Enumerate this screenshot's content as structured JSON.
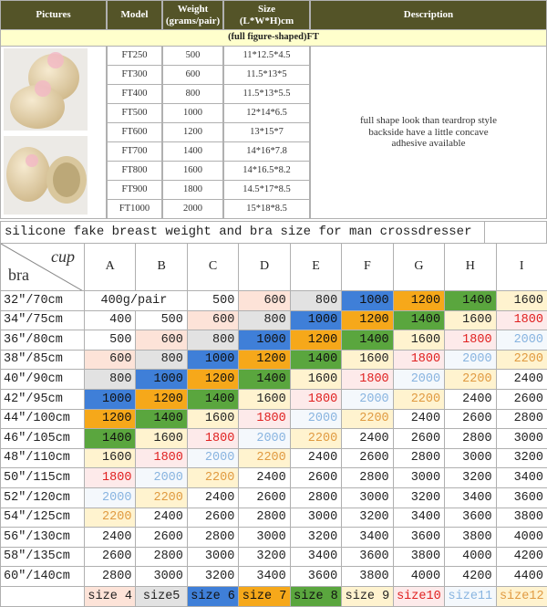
{
  "top": {
    "headers": [
      [
        "Pictures"
      ],
      [
        "Model"
      ],
      [
        "Weight",
        "(grams/pair)"
      ],
      [
        "Size",
        "(L*W*H)cm"
      ],
      [
        "Description"
      ]
    ],
    "subheader": "(full figure-shaped)FT",
    "rows": [
      [
        "FT250",
        "500",
        "11*12.5*4.5"
      ],
      [
        "FT300",
        "600",
        "11.5*13*5"
      ],
      [
        "FT400",
        "800",
        "11.5*13*5.5"
      ],
      [
        "FT500",
        "1000",
        "12*14*6.5"
      ],
      [
        "FT600",
        "1200",
        "13*15*7"
      ],
      [
        "FT700",
        "1400",
        "14*16*7.8"
      ],
      [
        "FT800",
        "1600",
        "14*16.5*8.2"
      ],
      [
        "FT900",
        "1800",
        "14.5*17*8.5"
      ],
      [
        "FT1000",
        "2000",
        "15*18*8.5"
      ]
    ],
    "description": [
      "full shape look than teardrop style",
      "backside have a little concave",
      "adhesive available"
    ]
  },
  "size_table": {
    "title": "silicone fake breast weight and bra size for man crossdresser",
    "cup_label": "cup",
    "bra_label": "bra",
    "cups": [
      "A",
      "B",
      "C",
      "D",
      "E",
      "F",
      "G",
      "H",
      "I"
    ],
    "rows": [
      {
        "bra": "32″/70cm",
        "cells": [
          "400g/pair",
          500,
          600,
          800,
          1000,
          1200,
          1400,
          1600
        ]
      },
      {
        "bra": "34″/75cm",
        "cells": [
          400,
          500,
          600,
          800,
          1000,
          1200,
          1400,
          1600,
          1800
        ]
      },
      {
        "bra": "36″/80cm",
        "cells": [
          500,
          600,
          800,
          1000,
          1200,
          1400,
          1600,
          1800,
          2000
        ]
      },
      {
        "bra": "38″/85cm",
        "cells": [
          600,
          800,
          1000,
          1200,
          1400,
          1600,
          1800,
          2000,
          2200
        ]
      },
      {
        "bra": "40″/90cm",
        "cells": [
          800,
          1000,
          1200,
          1400,
          1600,
          1800,
          2000,
          2200,
          2400
        ]
      },
      {
        "bra": "42″/95cm",
        "cells": [
          1000,
          1200,
          1400,
          1600,
          1800,
          2000,
          2200,
          2400,
          2600
        ]
      },
      {
        "bra": "44″/100cm",
        "cells": [
          1200,
          1400,
          1600,
          1800,
          2000,
          2200,
          2400,
          2600,
          2800
        ]
      },
      {
        "bra": "46″/105cm",
        "cells": [
          1400,
          1600,
          1800,
          2000,
          2200,
          2400,
          2600,
          2800,
          3000
        ]
      },
      {
        "bra": "48″/110cm",
        "cells": [
          1600,
          1800,
          2000,
          2200,
          2400,
          2600,
          2800,
          3000,
          3200
        ]
      },
      {
        "bra": "50″/115cm",
        "cells": [
          1800,
          2000,
          2200,
          2400,
          2600,
          2800,
          3000,
          3200,
          3400
        ]
      },
      {
        "bra": "52″/120cm",
        "cells": [
          2000,
          2200,
          2400,
          2600,
          2800,
          3000,
          3200,
          3400,
          3600
        ]
      },
      {
        "bra": "54″/125cm",
        "cells": [
          2200,
          2400,
          2600,
          2800,
          3000,
          3200,
          3400,
          3600,
          3800
        ]
      },
      {
        "bra": "56″/130cm",
        "cells": [
          2400,
          2600,
          2800,
          3000,
          3200,
          3400,
          3600,
          3800,
          4000
        ]
      },
      {
        "bra": "58″/135cm",
        "cells": [
          2600,
          2800,
          3000,
          3200,
          3400,
          3600,
          3800,
          4000,
          4200
        ]
      },
      {
        "bra": "60″/140cm",
        "cells": [
          2800,
          3000,
          3200,
          3400,
          3600,
          3800,
          4000,
          4200,
          4400
        ]
      }
    ],
    "sizes": [
      {
        "label": "size 4",
        "bg": "#fde3d8",
        "fg": "#222222"
      },
      {
        "label": "size5",
        "bg": "#e2e2e2",
        "fg": "#222222"
      },
      {
        "label": "size 6",
        "bg": "#3f7fd8",
        "fg": "#111111"
      },
      {
        "label": "size 7",
        "bg": "#f6a81a",
        "fg": "#111111"
      },
      {
        "label": "size 8",
        "bg": "#5aa63e",
        "fg": "#111111"
      },
      {
        "label": "size 9",
        "bg": "#fff3cf",
        "fg": "#222222"
      },
      {
        "label": "size10",
        "bg": "#fdeaea",
        "fg": "#e02020"
      },
      {
        "label": "size11",
        "bg": "#f4f8fc",
        "fg": "#88b4e0"
      },
      {
        "label": "size12",
        "bg": "#fff3cf",
        "fg": "#e09a40"
      }
    ]
  }
}
